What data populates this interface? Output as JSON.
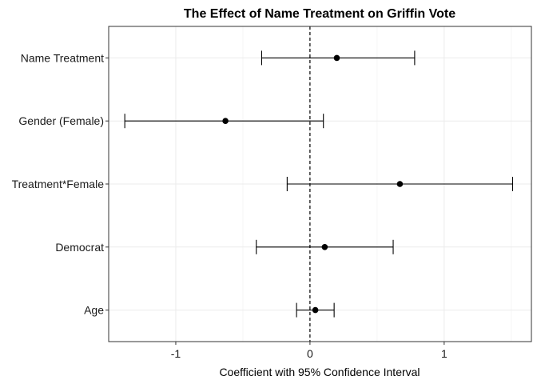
{
  "chart_data": {
    "type": "scatter",
    "subtype": "coefficient-plot-with-error-bars",
    "title": "The Effect of Name Treatment on Griffin Vote",
    "xlabel": "Coefficient with 95% Confidence Interval",
    "ylabel": "",
    "xlim": [
      -1.5,
      1.65
    ],
    "x_ticks": [
      -1,
      0,
      1
    ],
    "x_tick_labels": [
      "-1",
      "0",
      "1"
    ],
    "grid": true,
    "reference_line": {
      "x": 0,
      "style": "dashed"
    },
    "categories": [
      "Name Treatment",
      "Gender (Female)",
      "Treatment*Female",
      "Democrat",
      "Age"
    ],
    "estimates": [
      0.2,
      -0.63,
      0.67,
      0.11,
      0.04
    ],
    "ci_lower": [
      -0.36,
      -1.38,
      -0.17,
      -0.4,
      -0.1
    ],
    "ci_upper": [
      0.78,
      0.1,
      1.51,
      0.62,
      0.18
    ]
  },
  "colors": {
    "background": "#ffffff",
    "panel_border": "#333333",
    "grid_major": "#ebebeb",
    "grid_minor": "#f5f5f5",
    "points": "#000000"
  }
}
